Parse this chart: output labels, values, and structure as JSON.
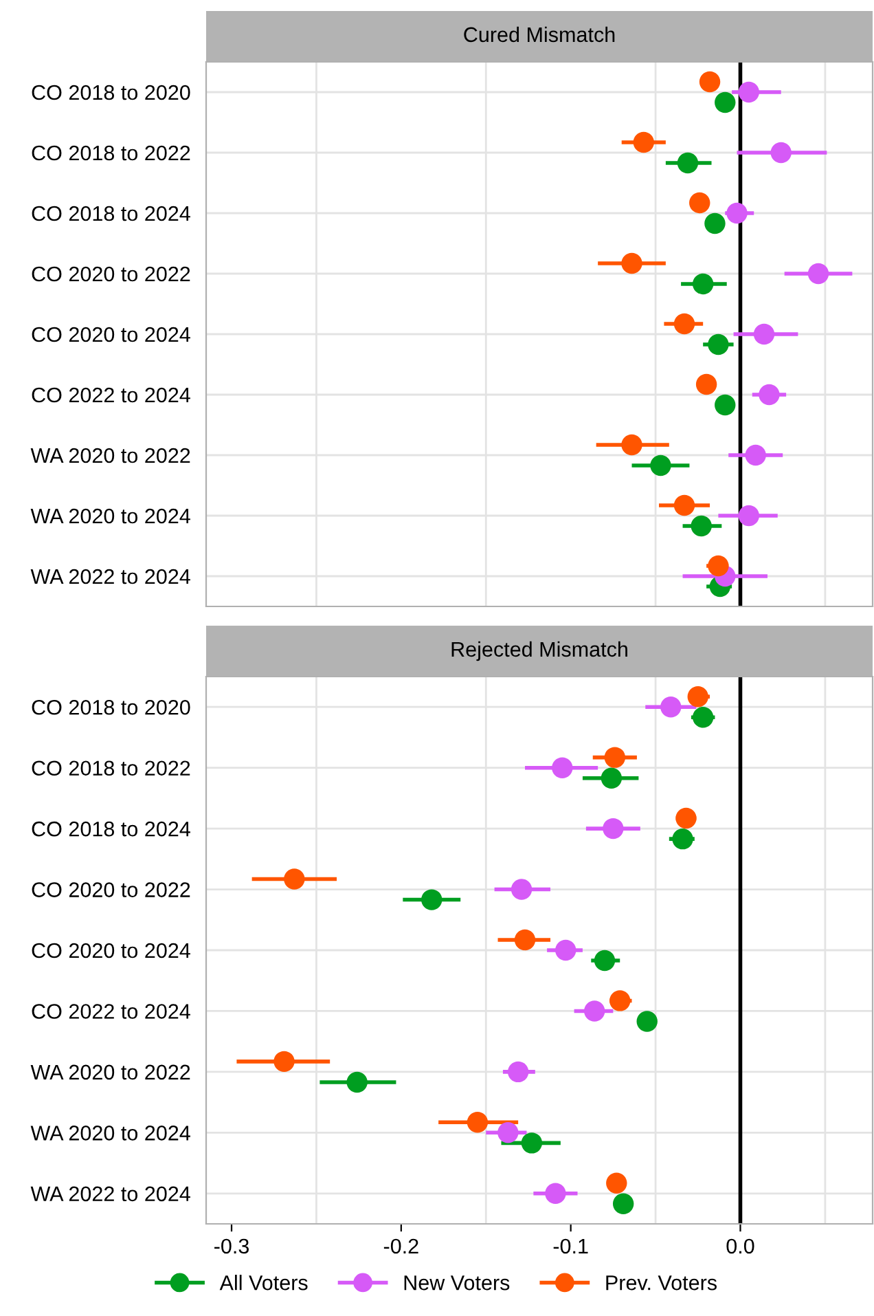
{
  "chart_data": [
    {
      "type": "scatter",
      "title": "Cured Mismatch",
      "orientation": "horizontal",
      "marker": "circle",
      "grid": true,
      "tick_labels": "y",
      "categories": [
        "CO 2018 to 2020",
        "CO 2018 to 2022",
        "CO 2018 to 2024",
        "CO 2020 to 2022",
        "CO 2020 to 2024",
        "CO 2022 to 2024",
        "WA 2020 to 2022",
        "WA 2020 to 2024",
        "WA 2022 to 2024"
      ],
      "xlim": [
        -0.315,
        0.078
      ],
      "xticks": [
        -0.3,
        {
          "value": -0.25,
          "label": null
        },
        -0.2,
        {
          "value": -0.15,
          "label": null
        },
        -0.1,
        {
          "value": -0.05,
          "label": null
        },
        0,
        {
          "value": 0.05,
          "label": null
        }
      ],
      "ref_lines": [
        {
          "axis": "x",
          "value": 0,
          "color": "#000000"
        }
      ],
      "series": [
        {
          "color": "#009e20",
          "values": [
            -0.009,
            -0.031,
            -0.015,
            -0.022,
            -0.013,
            -0.009,
            -0.047,
            -0.023,
            -0.012
          ],
          "errors": [
            null,
            [
              -0.044,
              -0.017
            ],
            null,
            [
              -0.035,
              -0.008
            ],
            [
              -0.022,
              -0.004
            ],
            null,
            [
              -0.064,
              -0.03
            ],
            [
              -0.034,
              -0.011
            ],
            [
              -0.02,
              -0.005
            ]
          ]
        },
        {
          "color": "#d65af7",
          "values": [
            0.005,
            0.024,
            -0.002,
            0.046,
            0.014,
            0.017,
            0.009,
            0.005,
            -0.009
          ],
          "errors": [
            [
              -0.005,
              0.024
            ],
            [
              -0.002,
              0.051
            ],
            [
              -0.009,
              0.008
            ],
            [
              0.026,
              0.066
            ],
            [
              -0.004,
              0.034
            ],
            [
              0.007,
              0.027
            ],
            [
              -0.007,
              0.025
            ],
            [
              -0.013,
              0.022
            ],
            [
              -0.034,
              0.016
            ]
          ]
        },
        {
          "color": "#ff5500",
          "values": [
            -0.018,
            -0.057,
            -0.024,
            -0.064,
            -0.033,
            -0.02,
            -0.064,
            -0.033,
            -0.013
          ],
          "errors": [
            null,
            [
              -0.07,
              -0.044
            ],
            null,
            [
              -0.084,
              -0.044
            ],
            [
              -0.045,
              -0.022
            ],
            null,
            [
              -0.085,
              -0.042
            ],
            [
              -0.048,
              -0.018
            ],
            [
              -0.02,
              -0.007
            ]
          ]
        }
      ]
    },
    {
      "type": "scatter",
      "title": "Rejected Mismatch",
      "orientation": "horizontal",
      "marker": "circle",
      "grid": true,
      "legend": "bottom",
      "categories": [
        "CO 2018 to 2020",
        "CO 2018 to 2022",
        "CO 2018 to 2024",
        "CO 2020 to 2022",
        "CO 2020 to 2024",
        "CO 2022 to 2024",
        "WA 2020 to 2022",
        "WA 2020 to 2024",
        "WA 2022 to 2024"
      ],
      "xlim": [
        -0.315,
        0.078
      ],
      "xticks": [
        -0.3,
        {
          "value": -0.25,
          "label": null
        },
        -0.2,
        {
          "value": -0.15,
          "label": null
        },
        -0.1,
        {
          "value": -0.05,
          "label": null
        },
        {
          "value": 0,
          "label": "0.0"
        },
        {
          "value": 0.05,
          "label": null
        }
      ],
      "ref_lines": [
        {
          "axis": "x",
          "value": 0,
          "color": "#000000"
        }
      ],
      "series": [
        {
          "name": "All Voters",
          "color": "#009e20",
          "values": [
            -0.022,
            -0.076,
            -0.034,
            -0.182,
            -0.08,
            -0.055,
            -0.226,
            -0.123,
            -0.069
          ],
          "errors": [
            [
              -0.029,
              -0.015
            ],
            [
              -0.093,
              -0.06
            ],
            [
              -0.042,
              -0.027
            ],
            [
              -0.199,
              -0.165
            ],
            [
              -0.088,
              -0.071
            ],
            null,
            [
              -0.248,
              -0.203
            ],
            [
              -0.141,
              -0.106
            ],
            null
          ]
        },
        {
          "name": "New Voters",
          "color": "#d65af7",
          "values": [
            -0.041,
            -0.105,
            -0.075,
            -0.129,
            -0.103,
            -0.086,
            -0.131,
            -0.137,
            -0.109
          ],
          "errors": [
            [
              -0.056,
              -0.026
            ],
            [
              -0.127,
              -0.084
            ],
            [
              -0.091,
              -0.059
            ],
            [
              -0.145,
              -0.112
            ],
            [
              -0.114,
              -0.093
            ],
            [
              -0.098,
              -0.075
            ],
            [
              -0.14,
              -0.121
            ],
            [
              -0.15,
              -0.126
            ],
            [
              -0.122,
              -0.096
            ]
          ]
        },
        {
          "name": "Prev. Voters",
          "color": "#ff5500",
          "values": [
            -0.025,
            -0.074,
            -0.032,
            -0.263,
            -0.127,
            -0.071,
            -0.269,
            -0.155,
            -0.073
          ],
          "errors": [
            [
              -0.03,
              -0.018
            ],
            [
              -0.087,
              -0.061
            ],
            [
              -0.038,
              -0.026
            ],
            [
              -0.288,
              -0.238
            ],
            [
              -0.143,
              -0.112
            ],
            [
              -0.077,
              -0.064
            ],
            [
              -0.297,
              -0.242
            ],
            [
              -0.178,
              -0.131
            ],
            null
          ]
        }
      ]
    }
  ]
}
